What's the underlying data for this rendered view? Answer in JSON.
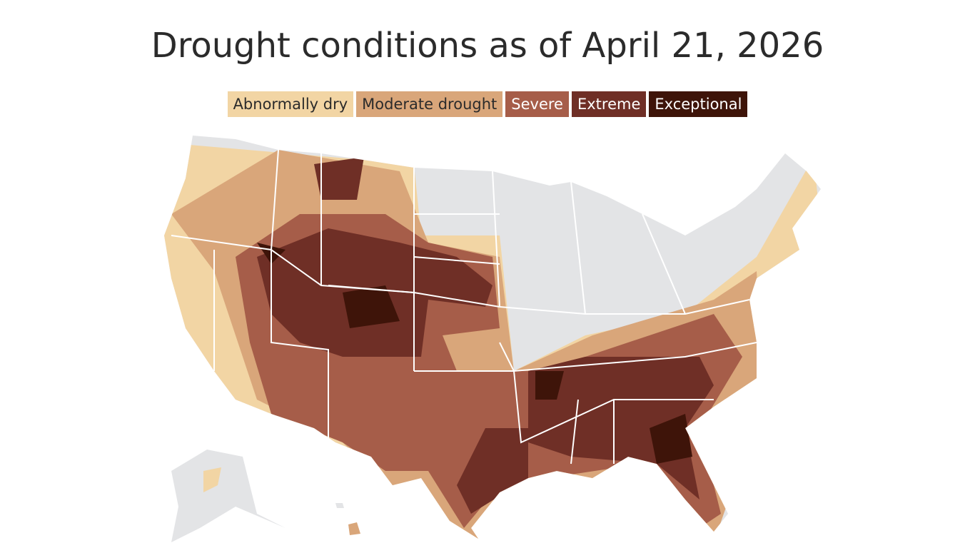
{
  "title": "Drought conditions as of April 21, 2026",
  "legend": [
    {
      "label": "Abnormally dry",
      "color": "#f2d5a4"
    },
    {
      "label": "Moderate drought",
      "color": "#d9a67a"
    },
    {
      "label": "Severe",
      "color": "#a65d49"
    },
    {
      "label": "Extreme",
      "color": "#6f2f26"
    },
    {
      "label": "Exceptional",
      "color": "#3e1409"
    }
  ]
}
